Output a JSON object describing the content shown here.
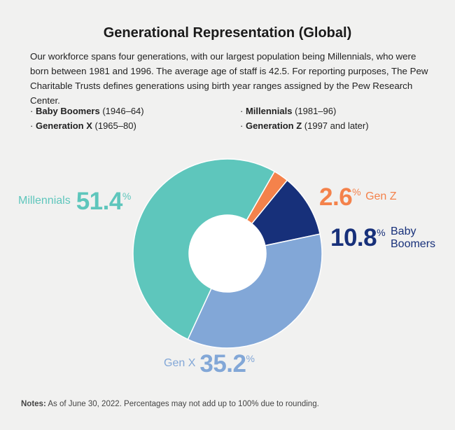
{
  "title": "Generational Representation (Global)",
  "intro": "Our workforce spans four generations, with our largest population being Millennials, who were born between 1981 and 1996. The average age of staff is 42.5. For reporting purposes, The Pew Charitable Trusts defines generations using birth year ranges assigned by the Pew Research Center.",
  "definitions": [
    {
      "bullet": "·",
      "name": "Baby Boomers",
      "range": "(1946–64)"
    },
    {
      "bullet": "·",
      "name": "Generation X",
      "range": "(1965–80)"
    },
    {
      "bullet": "·",
      "name": "Millennials",
      "range": "(1981–96)"
    },
    {
      "bullet": "·",
      "name": "Generation Z",
      "range": "(1997 and later)"
    }
  ],
  "notes": {
    "label": "Notes:",
    "text": "As of June 30, 2022. Percentages may not add up to 100% due to rounding."
  },
  "chart_data": {
    "type": "pie",
    "donut": true,
    "percent_symbol": "%",
    "series": [
      {
        "name": "Gen Z",
        "display_value": "2.6",
        "value": 2.6,
        "color": "#f4824b"
      },
      {
        "name": "Baby Boomers",
        "display_value": "10.8",
        "value": 10.8,
        "color": "#17307a"
      },
      {
        "name": "Gen X",
        "display_value": "35.2",
        "value": 35.2,
        "color": "#82a7d7"
      },
      {
        "name": "Millennials",
        "display_value": "51.4",
        "value": 51.4,
        "color": "#5ec6bc"
      }
    ]
  }
}
